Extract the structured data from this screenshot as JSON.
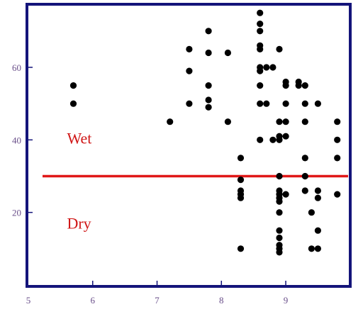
{
  "chart_data": {
    "type": "scatter",
    "title": "",
    "xlabel": "",
    "ylabel": "",
    "xlim": [
      5,
      9.98
    ],
    "ylim": [
      0,
      77
    ],
    "x_ticks": [
      5,
      6,
      7,
      8,
      9
    ],
    "y_ticks": [
      20,
      40,
      60
    ],
    "grid": false,
    "legend": "none",
    "colors": {
      "frame": "#14147a",
      "tick_label": "#6a4f8a",
      "threshold_line": "#e01818",
      "annotation": "#d01818",
      "marker": "#000000"
    },
    "threshold": {
      "y": 30
    },
    "annotations": [
      {
        "text": "Wet",
        "x": 5.6,
        "y": 39
      },
      {
        "text": "Dry",
        "x": 5.6,
        "y": 15.5
      }
    ],
    "series": [
      {
        "points": [
          [
            5.7,
            55
          ],
          [
            5.7,
            50
          ],
          [
            7.2,
            45
          ],
          [
            7.5,
            65
          ],
          [
            7.5,
            59
          ],
          [
            7.5,
            50
          ],
          [
            7.8,
            70
          ],
          [
            7.8,
            64
          ],
          [
            7.8,
            55
          ],
          [
            7.8,
            51
          ],
          [
            7.8,
            49
          ],
          [
            8.1,
            64
          ],
          [
            8.1,
            45
          ],
          [
            8.3,
            35
          ],
          [
            8.3,
            29
          ],
          [
            8.3,
            26
          ],
          [
            8.3,
            25
          ],
          [
            8.3,
            24
          ],
          [
            8.3,
            10
          ],
          [
            8.6,
            75
          ],
          [
            8.6,
            72
          ],
          [
            8.6,
            70
          ],
          [
            8.6,
            66
          ],
          [
            8.6,
            65
          ],
          [
            8.6,
            60
          ],
          [
            8.6,
            59
          ],
          [
            8.6,
            55
          ],
          [
            8.6,
            50
          ],
          [
            8.6,
            40
          ],
          [
            8.7,
            60
          ],
          [
            8.7,
            50
          ],
          [
            8.8,
            60
          ],
          [
            8.8,
            40
          ],
          [
            8.9,
            65
          ],
          [
            8.9,
            45
          ],
          [
            8.9,
            41
          ],
          [
            8.9,
            40
          ],
          [
            8.9,
            30
          ],
          [
            8.9,
            26
          ],
          [
            8.9,
            25
          ],
          [
            8.9,
            24
          ],
          [
            8.9,
            23
          ],
          [
            8.9,
            20
          ],
          [
            8.9,
            15
          ],
          [
            8.9,
            13
          ],
          [
            8.9,
            11
          ],
          [
            8.9,
            10
          ],
          [
            8.9,
            9
          ],
          [
            9.0,
            56
          ],
          [
            9.0,
            55
          ],
          [
            9.0,
            50
          ],
          [
            9.0,
            45
          ],
          [
            9.0,
            41
          ],
          [
            9.0,
            25
          ],
          [
            9.2,
            56
          ],
          [
            9.2,
            55
          ],
          [
            9.3,
            55
          ],
          [
            9.3,
            50
          ],
          [
            9.3,
            45
          ],
          [
            9.3,
            35
          ],
          [
            9.3,
            30
          ],
          [
            9.3,
            26
          ],
          [
            9.4,
            20
          ],
          [
            9.4,
            10
          ],
          [
            9.5,
            50
          ],
          [
            9.5,
            26
          ],
          [
            9.5,
            24
          ],
          [
            9.5,
            15
          ],
          [
            9.5,
            10
          ],
          [
            9.8,
            45
          ],
          [
            9.8,
            40
          ],
          [
            9.8,
            35
          ],
          [
            9.8,
            25
          ]
        ]
      }
    ]
  }
}
